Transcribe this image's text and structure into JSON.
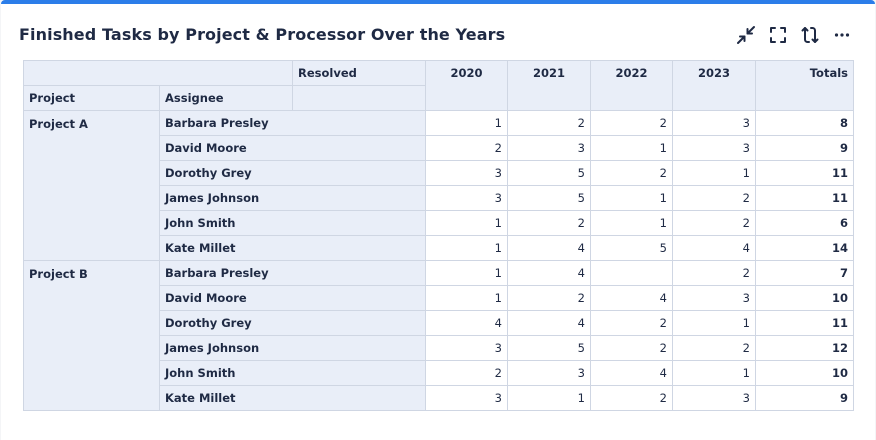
{
  "widget": {
    "title": "Finished Tasks by Project & Processor Over the Years",
    "toolbar_icons": [
      "collapse-icon",
      "fullscreen-icon",
      "refresh-icon",
      "more-icon"
    ],
    "accent": "#2b7de9"
  },
  "table": {
    "resolved_label": "Resolved",
    "project_header": "Project",
    "assignee_header": "Assignee",
    "years": [
      "2020",
      "2021",
      "2022",
      "2023"
    ],
    "totals_header": "Totals",
    "groups": [
      {
        "project": "Project A",
        "rows": [
          {
            "assignee": "Barbara Presley",
            "values": [
              "1",
              "2",
              "2",
              "3"
            ],
            "total": "8"
          },
          {
            "assignee": "David Moore",
            "values": [
              "2",
              "3",
              "1",
              "3"
            ],
            "total": "9"
          },
          {
            "assignee": "Dorothy Grey",
            "values": [
              "3",
              "5",
              "2",
              "1"
            ],
            "total": "11"
          },
          {
            "assignee": "James Johnson",
            "values": [
              "3",
              "5",
              "1",
              "2"
            ],
            "total": "11"
          },
          {
            "assignee": "John Smith",
            "values": [
              "1",
              "2",
              "1",
              "2"
            ],
            "total": "6"
          },
          {
            "assignee": "Kate Millet",
            "values": [
              "1",
              "4",
              "5",
              "4"
            ],
            "total": "14"
          }
        ]
      },
      {
        "project": "Project B",
        "rows": [
          {
            "assignee": "Barbara Presley",
            "values": [
              "1",
              "4",
              "",
              "2"
            ],
            "total": "7"
          },
          {
            "assignee": "David Moore",
            "values": [
              "1",
              "2",
              "4",
              "3"
            ],
            "total": "10"
          },
          {
            "assignee": "Dorothy Grey",
            "values": [
              "4",
              "4",
              "2",
              "1"
            ],
            "total": "11"
          },
          {
            "assignee": "James Johnson",
            "values": [
              "3",
              "5",
              "2",
              "2"
            ],
            "total": "12"
          },
          {
            "assignee": "John Smith",
            "values": [
              "2",
              "3",
              "4",
              "1"
            ],
            "total": "10"
          },
          {
            "assignee": "Kate Millet",
            "values": [
              "3",
              "1",
              "2",
              "3"
            ],
            "total": "9"
          }
        ]
      }
    ]
  }
}
